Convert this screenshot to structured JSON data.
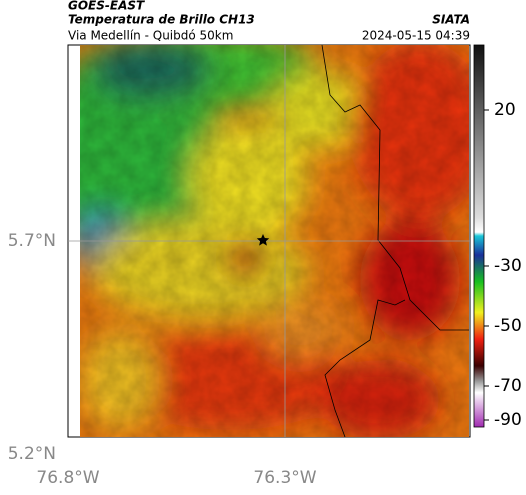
{
  "header": {
    "source": "GOES-EAST",
    "title": "Temperatura de Brillo CH13",
    "agency": "SIATA",
    "location": "Via Medellín - Quibdó 50km",
    "datetime": "2024-05-15 04:39"
  },
  "map": {
    "lat_labels": [
      "5.7°N",
      "5.2°N"
    ],
    "lon_labels": [
      "76.8°W",
      "76.3°W"
    ]
  },
  "colorbar": {
    "labels": [
      "20",
      "-30",
      "-50",
      "-70",
      "-90"
    ]
  }
}
